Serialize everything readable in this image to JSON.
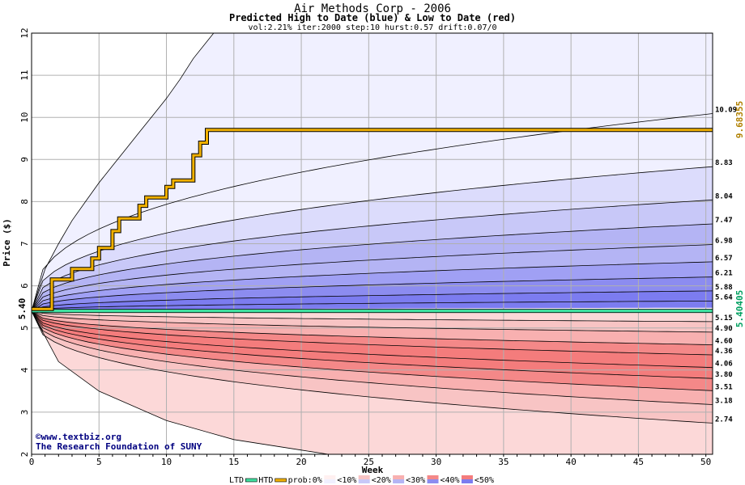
{
  "chart_data": {
    "type": "area",
    "title": "Air Methods Corp - 2006",
    "subtitle": "Predicted High to Date (blue) &  Low to Date (red)",
    "params": "vol:2.21% iter:2000 step:10 hurst:0.57 drift:0.07/0",
    "xlabel": "Week",
    "ylabel": "Price ($)",
    "xlim": [
      0,
      50.5
    ],
    "ylim": [
      2,
      12
    ],
    "x_ticks": [
      0,
      5,
      10,
      15,
      20,
      25,
      30,
      35,
      40,
      45,
      50
    ],
    "y_ticks": [
      2,
      3,
      4,
      5,
      6,
      7,
      8,
      9,
      10,
      11,
      12
    ],
    "grid": true,
    "start_price": 5.4,
    "start_label": "5.40",
    "htd_value": 9.68355,
    "htd_label": "9.68355",
    "ltd_value": 5.40405,
    "ltd_label": "5.40405",
    "quantile_ends_high": [
      {
        "value": 10.09,
        "label": "10.09"
      },
      {
        "value": 8.83,
        "label": "8.83"
      },
      {
        "value": 8.04,
        "label": "8.04"
      },
      {
        "value": 7.47,
        "label": "7.47"
      },
      {
        "value": 6.98,
        "label": "6.98"
      },
      {
        "value": 6.57,
        "label": "6.57"
      },
      {
        "value": 6.21,
        "label": "6.21"
      },
      {
        "value": 5.88,
        "label": "5.88"
      },
      {
        "value": 5.64,
        "label": "5.64"
      }
    ],
    "quantile_ends_low": [
      {
        "value": 5.15,
        "label": "5.15"
      },
      {
        "value": 4.9,
        "label": "4.90"
      },
      {
        "value": 4.6,
        "label": "4.60"
      },
      {
        "value": 4.36,
        "label": "4.36"
      },
      {
        "value": 4.06,
        "label": "4.06"
      },
      {
        "value": 3.8,
        "label": "3.80"
      },
      {
        "value": 3.51,
        "label": "3.51"
      },
      {
        "value": 3.18,
        "label": "3.18"
      },
      {
        "value": 2.74,
        "label": "2.74"
      }
    ],
    "outer_high_curve": {
      "x": [
        0,
        1,
        2,
        3,
        4,
        5,
        6,
        7,
        8,
        9,
        10,
        11,
        12,
        13.5
      ],
      "y": [
        5.4,
        6.4,
        7.0,
        7.55,
        8.0,
        8.45,
        8.85,
        9.25,
        9.65,
        10.05,
        10.45,
        10.9,
        11.4,
        12.0
      ]
    },
    "outer_low_curve": {
      "x": [
        0,
        2,
        5,
        10,
        15,
        20,
        22
      ],
      "y": [
        5.4,
        4.2,
        3.5,
        2.8,
        2.35,
        2.1,
        2.0
      ]
    },
    "htd_path": {
      "x": [
        0,
        1.5,
        1.5,
        3,
        3,
        4.5,
        4.5,
        5,
        5,
        6,
        6,
        6.5,
        6.5,
        8,
        8,
        8.5,
        8.5,
        10,
        10,
        10.5,
        10.5,
        12,
        12,
        12.5,
        12.5,
        13,
        13,
        50.5
      ],
      "y": [
        5.45,
        5.45,
        6.15,
        6.15,
        6.4,
        6.4,
        6.65,
        6.65,
        6.9,
        6.9,
        7.3,
        7.3,
        7.6,
        7.6,
        7.9,
        7.9,
        8.1,
        8.1,
        8.35,
        8.35,
        8.5,
        8.5,
        9.1,
        9.1,
        9.4,
        9.4,
        9.7,
        9.7
      ]
    },
    "legend": [
      "LTD",
      "HTD",
      "prob:0%",
      "<10%",
      "<20%",
      "<30%",
      "<40%",
      "<50%"
    ],
    "colors": {
      "htd": "#f0b000",
      "ltd": "#40e0a0",
      "blue_bands": [
        "#f0f0ff",
        "#dcdcfc",
        "#c8c8f8",
        "#b4b4f4",
        "#a0a0f4",
        "#8c8cf0",
        "#7c7cf0"
      ],
      "red_bands": [
        "#fff0f0",
        "#fcd8d8",
        "#f8c4c4",
        "#f8b0b0",
        "#f89c9c",
        "#f48888",
        "#f47c7c"
      ]
    }
  },
  "credit": {
    "line1": "©www.textbiz.org",
    "line2": "The Research Foundation of SUNY"
  }
}
